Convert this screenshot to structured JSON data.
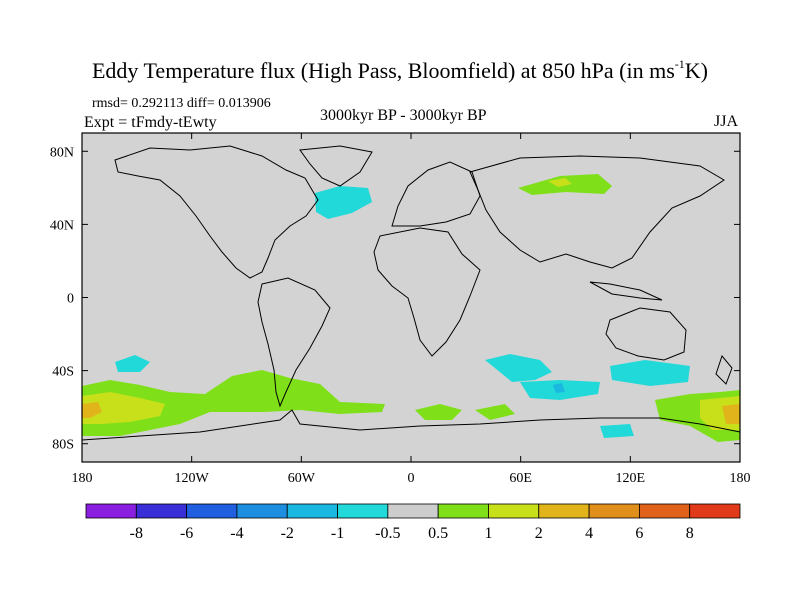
{
  "title": {
    "main": "Eddy Temperature flux (High Pass, Bloomfield) at 850 hPa (in ms",
    "sup": "-1",
    "unit_tail": "K)"
  },
  "stats_text": "rmsd= 0.292113 diff= 0.013906",
  "expt_text": "Expt = tFmdy-tEwty",
  "period_text": "3000kyr BP - 3000kyr BP",
  "season_text": "JJA",
  "lat_labels": [
    {
      "text": "80N",
      "lat": 80
    },
    {
      "text": "40N",
      "lat": 40
    },
    {
      "text": "0",
      "lat": 0
    },
    {
      "text": "40S",
      "lat": -40
    },
    {
      "text": "80S",
      "lat": -80
    }
  ],
  "lon_labels": [
    {
      "text": "180",
      "lon": -180
    },
    {
      "text": "120W",
      "lon": -120
    },
    {
      "text": "60W",
      "lon": -60
    },
    {
      "text": "0",
      "lon": 0
    },
    {
      "text": "60E",
      "lon": 60
    },
    {
      "text": "120E",
      "lon": 120
    },
    {
      "text": "180",
      "lon": 180
    }
  ],
  "colorbar": {
    "colors": [
      "#8b1fe0",
      "#3a2fd6",
      "#1f5fe0",
      "#1e8fe0",
      "#1ab7e0",
      "#22d9d9",
      "#cdcdcd",
      "#7fe01a",
      "#c8e01a",
      "#e0b41a",
      "#e0901a",
      "#e0621a",
      "#e03a1a"
    ],
    "labels": [
      "-8",
      "-6",
      "-4",
      "-2",
      "-1",
      "-0.5",
      "0.5",
      "1",
      "2",
      "4",
      "6",
      "8"
    ]
  },
  "legend_colors": {
    "background": "#d3d3d3",
    "cyan": "#22d9d9",
    "green": "#7fe01a",
    "yellow": "#c8e01a",
    "orange": "#e0b41a",
    "blue": "#1ab7e0"
  }
}
